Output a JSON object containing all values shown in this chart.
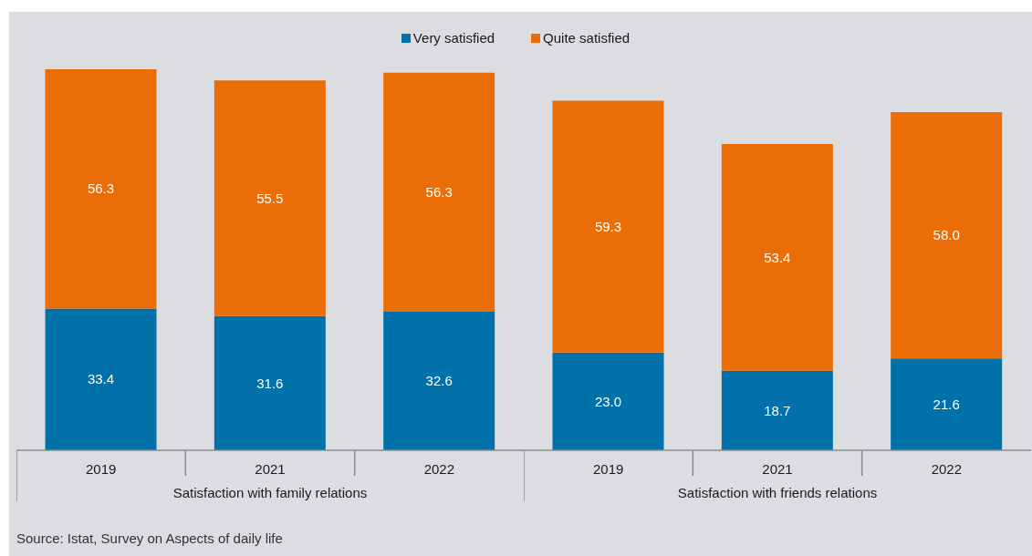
{
  "chart_data": [
    {
      "type": "bar",
      "stacked": true,
      "categories": [
        "2019",
        "2021",
        "2022"
      ],
      "xlabel": "Satisfaction with family relations",
      "series": [
        {
          "name": "Very satisfied",
          "color": "#0072a9",
          "values": [
            33.4,
            31.6,
            32.6
          ]
        },
        {
          "name": "Quite satisfied",
          "color": "#ea6d07",
          "values": [
            56.3,
            55.5,
            56.3
          ]
        }
      ],
      "data_labels": true,
      "legend": "top",
      "annotations": [
        "Source: Istat, Survey on Aspects of daily life"
      ]
    },
    {
      "type": "bar",
      "stacked": true,
      "categories": [
        "2019",
        "2021",
        "2022"
      ],
      "xlabel": "Satisfaction with friends relations",
      "series": [
        {
          "color": "#0072a9",
          "values": [
            23.0,
            18.7,
            21.6
          ],
          "value_labels": [
            "23.0",
            "18.7",
            "21.6"
          ]
        },
        {
          "color": "#ea6d07",
          "values": [
            59.3,
            53.4,
            58.0
          ],
          "value_labels": [
            "59.3",
            "53.4",
            "58.0"
          ]
        }
      ]
    }
  ]
}
